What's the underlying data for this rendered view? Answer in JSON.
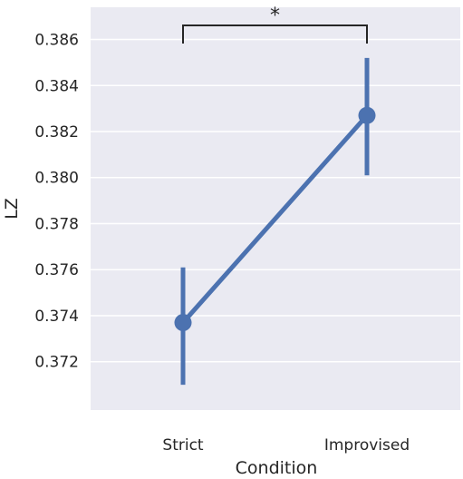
{
  "chart_data": {
    "type": "line",
    "title": "",
    "xlabel": "Condition",
    "ylabel": "LZ",
    "categories": [
      "Strict",
      "Improvised"
    ],
    "series": [
      {
        "values": [
          0.3737,
          0.3827
        ],
        "ci_low": [
          0.371,
          0.3801
        ],
        "ci_high": [
          0.3761,
          0.3852
        ],
        "color": "#4c72b0"
      }
    ],
    "ylim": [
      0.3699,
      0.3874
    ],
    "yticks": [
      0.372,
      0.374,
      0.376,
      0.378,
      0.38,
      0.382,
      0.384,
      0.386
    ],
    "ytick_labels": [
      "0.372",
      "0.374",
      "0.376",
      "0.378",
      "0.380",
      "0.382",
      "0.384",
      "0.386"
    ],
    "grid": true,
    "background": "#eaeaf2",
    "annotation": {
      "text": "*",
      "between": [
        "Strict",
        "Improvised"
      ]
    }
  }
}
